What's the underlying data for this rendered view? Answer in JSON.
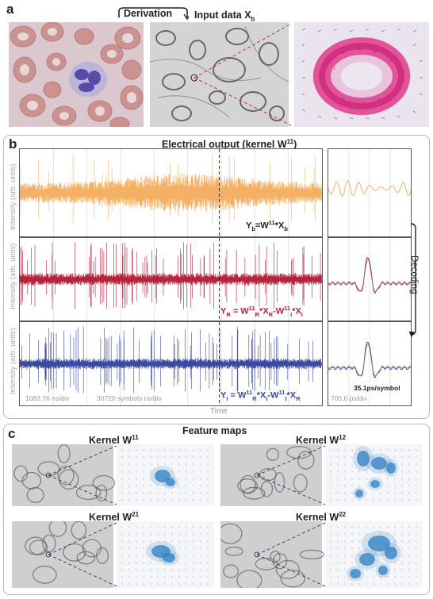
{
  "panel_a": {
    "label": "a",
    "derivation": "Derivation",
    "input_data": "Input data X",
    "input_sub": "b"
  },
  "panel_b": {
    "label": "b",
    "title": "Electrical output (kernel W",
    "title_sup": "11",
    "title_end": ")",
    "ylabel": "Intensity (arb. units)",
    "xlabel": "Time",
    "decoding": "Decoding",
    "eq1": "Y",
    "eq1_sub": "b",
    "eq1_rest": "=W",
    "eq1_sup": "11",
    "eq1_tail": "*X",
    "eq1_tail_sub": "b",
    "eq2": "Y",
    "eq2_sub": "R",
    "eq2_rest": " = W",
    "eq2_sup1": "11",
    "eq2_sub1": "R",
    "eq2_mid": "*X",
    "eq2_sub2": "R",
    "eq2_minus": "-W",
    "eq2_sup2": "11",
    "eq2_sub3": "I",
    "eq2_end": "*X",
    "eq2_sub4": "I",
    "eq3": "Y",
    "eq3_sub": "I",
    "eq3_rest": " = W",
    "eq3_sup1": "11",
    "eq3_sub1": "R",
    "eq3_mid": "*X",
    "eq3_sub2": "I",
    "eq3_minus": "-W",
    "eq3_sup2": "11",
    "eq3_sub3": "I",
    "eq3_end": "*X",
    "eq3_sub4": "R",
    "scale1": "1083.76 ns/div",
    "scale2": "30720 symbols ns/div",
    "scale3": "705.6 ps/div",
    "scale4": "35.1ps/symbol",
    "colors": {
      "orange": "#f4b065",
      "red": "#b5243a",
      "blue": "#3b4aa0",
      "dash_red": "#c0392b"
    }
  },
  "panel_c": {
    "label": "c",
    "title": "Feature maps",
    "k11": "Kernel W",
    "k11_sup": "11",
    "k12": "Kernel W",
    "k12_sup": "12",
    "k21": "Kernel W",
    "k21_sup": "21",
    "k22": "Kernel W",
    "k22_sup": "22",
    "color_blob": "#2f7fc4"
  }
}
